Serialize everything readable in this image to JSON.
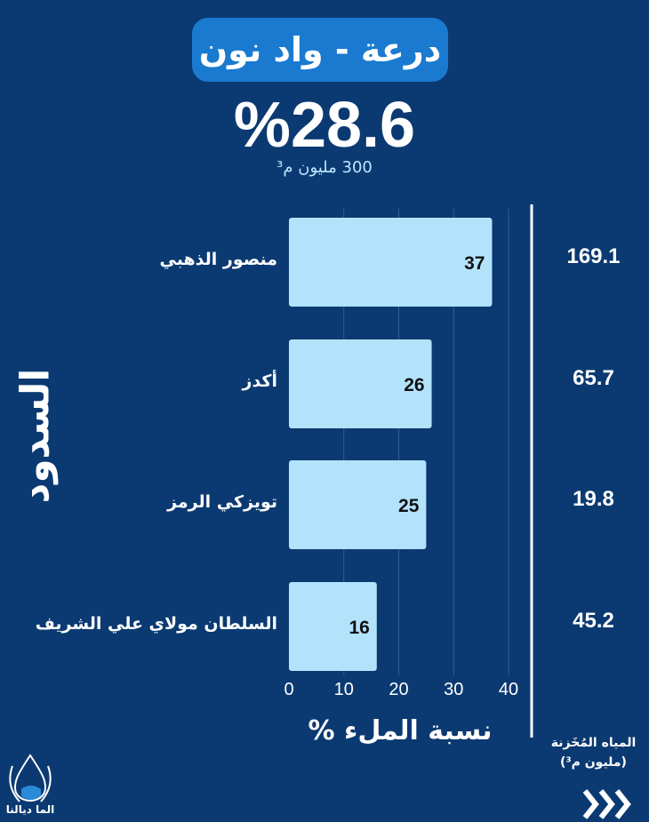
{
  "header": {
    "title": "درعة - واد نون",
    "fill_rate": "%28.6",
    "capacity": "300 مليون م³"
  },
  "chart_data": {
    "type": "bar",
    "orientation": "horizontal",
    "categories": [
      "منصور الذهبي",
      "أكدز",
      "تويزكي الرمز",
      "السلطان مولاي علي الشريف"
    ],
    "values": [
      37,
      26,
      25,
      16
    ],
    "xlim": [
      0,
      40
    ],
    "xticks": [
      "0",
      "10",
      "20",
      "30",
      "40"
    ],
    "xlabel": "نسبة الملء %",
    "ylabel": "السدود",
    "stored_water": {
      "title": "المياه المُخَزنة",
      "unit": "(مليون م³)",
      "values": [
        "169.1",
        "65.7",
        "19.8",
        "45.2"
      ]
    },
    "grid": true,
    "bar_color": "#b3e3fb"
  },
  "brand": {
    "name": "الما ديالنا"
  }
}
